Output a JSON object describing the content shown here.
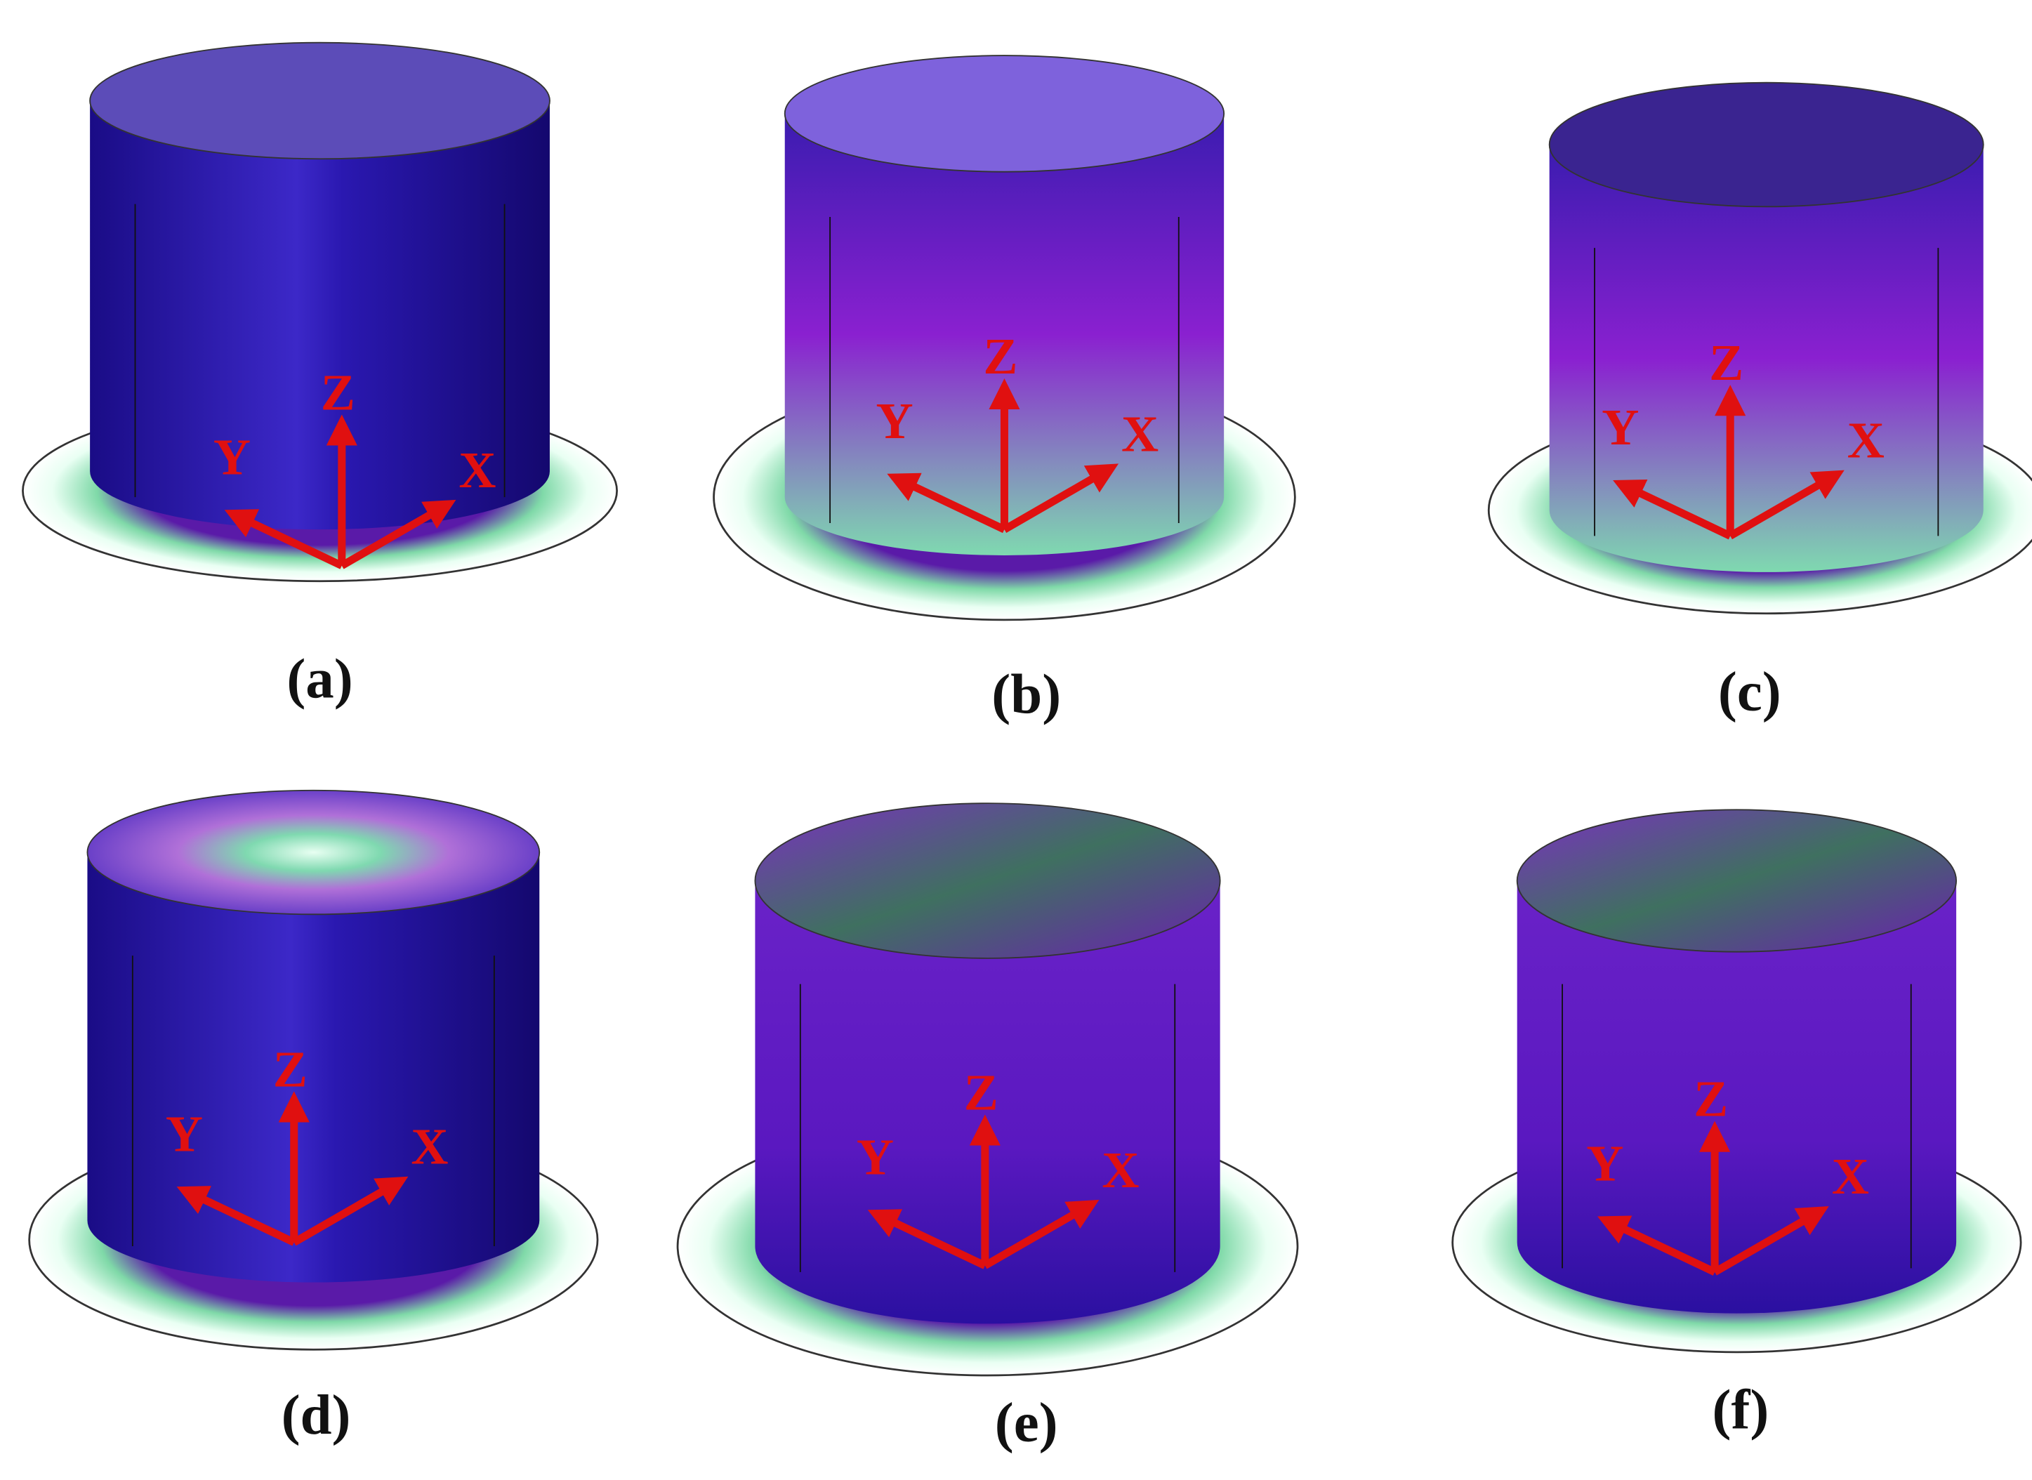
{
  "panels": [
    {
      "label": "(a)",
      "axes": {
        "x": "X",
        "y": "Y",
        "z": "Z"
      }
    },
    {
      "label": "(b)",
      "axes": {
        "x": "X",
        "y": "Y",
        "z": "Z"
      }
    },
    {
      "label": "(c)",
      "axes": {
        "x": "X",
        "y": "Y",
        "z": "Z"
      }
    },
    {
      "label": "(d)",
      "axes": {
        "x": "X",
        "y": "Y",
        "z": "Z"
      }
    },
    {
      "label": "(e)",
      "axes": {
        "x": "X",
        "y": "Y",
        "z": "Z"
      }
    },
    {
      "label": "(f)",
      "axes": {
        "x": "X",
        "y": "Y",
        "z": "Z"
      }
    }
  ]
}
